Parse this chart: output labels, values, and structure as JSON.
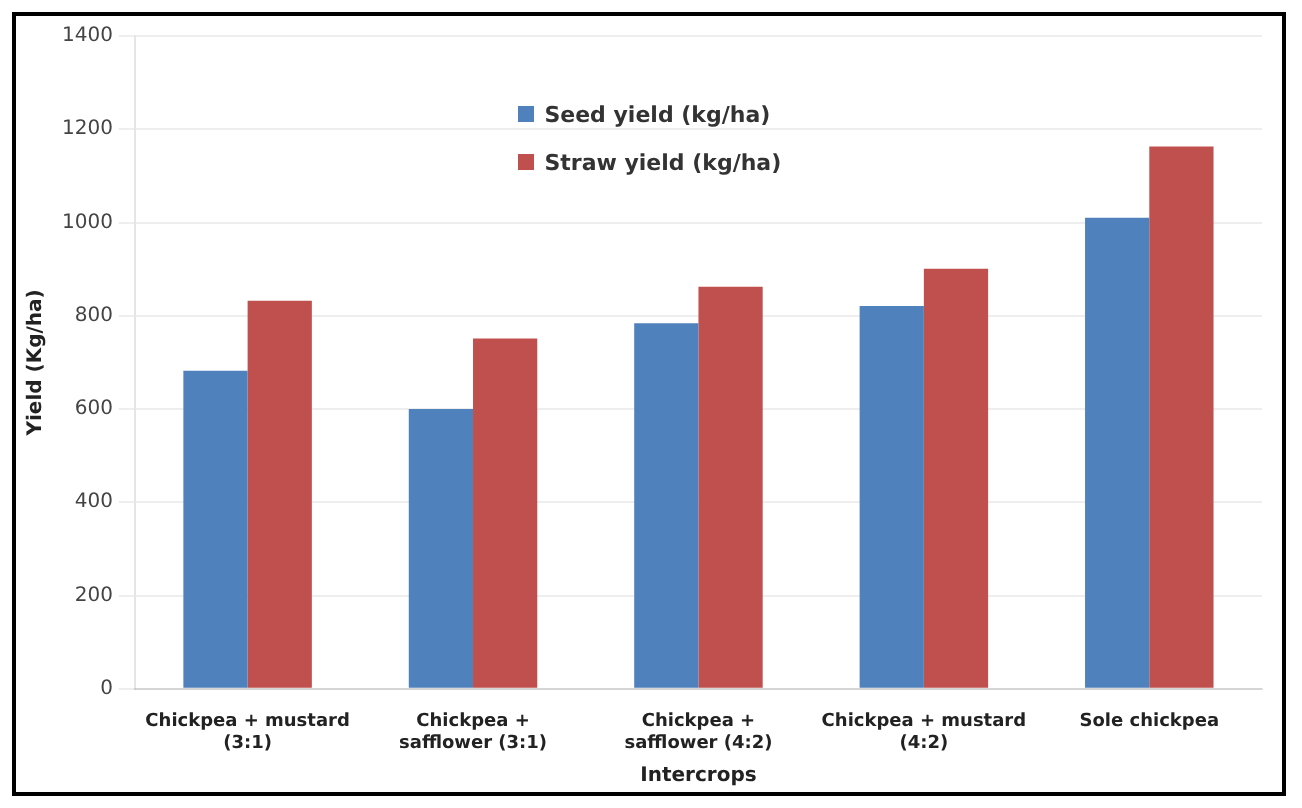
{
  "chart_data": {
    "type": "bar",
    "xlabel": "Intercrops",
    "ylabel": "Yield (Kg/ha)",
    "categories": [
      [
        "Chickpea + mustard",
        "(3:1)"
      ],
      [
        "Chickpea +",
        "safflower (3:1)"
      ],
      [
        "Chickpea +",
        "safflower (4:2)"
      ],
      [
        "Chickpea + mustard",
        "(4:2)"
      ],
      "Sole chickpea"
    ],
    "series": [
      {
        "name": "Seed yield (kg/ha)",
        "color": "#4f81bd",
        "values": [
          682,
          600,
          784,
          821,
          1010
        ]
      },
      {
        "name": "Straw yield (kg/ha)",
        "color": "#c0504d",
        "values": [
          832,
          751,
          862,
          901,
          1163
        ]
      }
    ],
    "ylim": [
      0,
      1400
    ],
    "yticks": [
      0,
      200,
      400,
      600,
      800,
      1000,
      1200,
      1400
    ],
    "grid": "y",
    "legend": "top"
  }
}
